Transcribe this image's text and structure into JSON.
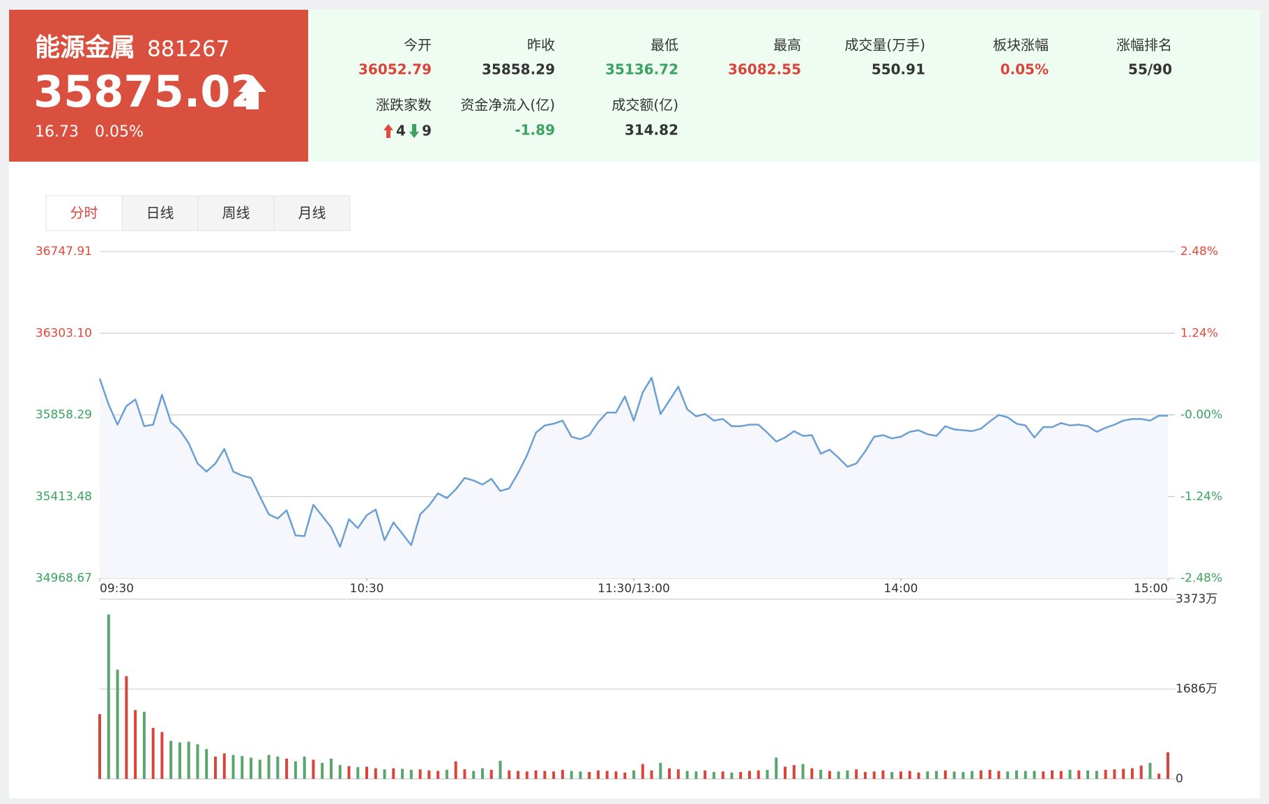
{
  "header": {
    "name": "能源金属",
    "code": "881267",
    "price": 35875.02,
    "change": 16.73,
    "change_pct": "0.05%"
  },
  "stats": [
    {
      "label": "今开",
      "value": 36052.79,
      "color": "#d9453a"
    },
    {
      "label": "昨收",
      "value": 35858.29,
      "color": "#333333"
    },
    {
      "label": "最低",
      "value": 35136.72,
      "color": "#3aa35f"
    },
    {
      "label": "最高",
      "value": 36082.55,
      "color": "#d9453a"
    },
    {
      "label": "成交量(万手)",
      "value": 550.91,
      "color": "#333333"
    },
    {
      "label": "板块涨幅",
      "value": "0.05%",
      "color": "#d9453a"
    },
    {
      "label": "涨幅排名",
      "value": "55/90",
      "color": "#333333"
    },
    {
      "label": "资金净流入(亿)",
      "value": -1.89,
      "color": "#3aa35f"
    },
    {
      "label": "成交额(亿)",
      "value": 314.82,
      "color": "#333333"
    }
  ],
  "breadth": {
    "label": "涨跌家数",
    "up": 4,
    "down": 9
  },
  "tabs": [
    "分时",
    "日线",
    "周线",
    "月线"
  ],
  "active_tab": 0,
  "chart_data": [
    {
      "type": "line",
      "color": "#6b9fd4",
      "area_color": "#f5f7fd",
      "grid": true,
      "up_color": "#e0493b",
      "down_color": "#3aa35f",
      "x": [
        0,
        2,
        4,
        6,
        8,
        10,
        12,
        14,
        16,
        18,
        20,
        22,
        24,
        26,
        28,
        30,
        32,
        34,
        36,
        38,
        40,
        42,
        44,
        46,
        48,
        50,
        52,
        54,
        56,
        58,
        60,
        62,
        64,
        66,
        68,
        70,
        72,
        74,
        76,
        78,
        80,
        82,
        84,
        86,
        88,
        90,
        92,
        94,
        96,
        98,
        100,
        102,
        104,
        106,
        108,
        110,
        112,
        114,
        116,
        118,
        120,
        122,
        124,
        126,
        128,
        130,
        132,
        134,
        136,
        138,
        140,
        142,
        144,
        146,
        148,
        150,
        152,
        154,
        156,
        158,
        160,
        162,
        164,
        166,
        168,
        170,
        172,
        174,
        176,
        178,
        180,
        182,
        184,
        186,
        188,
        190,
        192,
        194,
        196,
        198,
        200,
        202,
        204,
        206,
        208,
        210,
        212,
        214,
        216,
        218,
        220,
        222,
        224,
        226,
        228,
        230,
        232,
        234,
        236,
        238,
        240
      ],
      "values": [
        36056,
        35915,
        35805,
        35907,
        35942,
        35797,
        35805,
        35968,
        35819,
        35775,
        35704,
        35594,
        35550,
        35594,
        35673,
        35550,
        35528,
        35515,
        35414,
        35316,
        35294,
        35339,
        35202,
        35198,
        35369,
        35308,
        35246,
        35140,
        35290,
        35242,
        35312,
        35343,
        35176,
        35273,
        35211,
        35149,
        35316,
        35365,
        35431,
        35405,
        35453,
        35515,
        35501,
        35479,
        35510,
        35444,
        35458,
        35541,
        35638,
        35761,
        35801,
        35810,
        35827,
        35739,
        35726,
        35748,
        35819,
        35871,
        35871,
        35959,
        35827,
        35981,
        36061,
        35863,
        35937,
        36012,
        35889,
        35850,
        35863,
        35827,
        35836,
        35797,
        35797,
        35805,
        35805,
        35761,
        35713,
        35735,
        35770,
        35744,
        35748,
        35647,
        35669,
        35625,
        35576,
        35594,
        35660,
        35739,
        35748,
        35730,
        35739,
        35766,
        35775,
        35753,
        35744,
        35797,
        35779,
        35775,
        35770,
        35783,
        35823,
        35858,
        35845,
        35810,
        35801,
        35735,
        35792,
        35792,
        35814,
        35801,
        35805,
        35797,
        35766,
        35788,
        35805,
        35827,
        35836,
        35836,
        35827,
        35854,
        35854
      ],
      "xlim": [
        0,
        240
      ],
      "xticks": [
        {
          "value": 0,
          "label": "09:30"
        },
        {
          "value": 60,
          "label": "10:30"
        },
        {
          "value": 120,
          "label": "11:30/13:00"
        },
        {
          "value": 180,
          "label": "14:00"
        },
        {
          "value": 240,
          "label": "15:00"
        }
      ],
      "ylim": [
        34968.67,
        36747.91
      ],
      "yticks": [
        34968.67,
        35413.48,
        35858.29,
        {
          "value": 36303.1,
          "label": "36303.10"
        },
        36747.91
      ],
      "y2lim": [
        -2.48,
        2.48
      ],
      "y2ticks": [
        {
          "value": -2.48,
          "label": "-2.48%"
        },
        {
          "value": -1.24,
          "label": "-1.24%"
        },
        {
          "value": 0,
          "label": "-0.00%"
        },
        {
          "value": 1.24,
          "label": "1.24%"
        },
        {
          "value": 2.48,
          "label": "2.48%"
        }
      ]
    },
    {
      "type": "bar",
      "up_color": "#d9453a",
      "down_color": "#5aa56e",
      "x": [
        0,
        2,
        4,
        6,
        8,
        10,
        12,
        14,
        16,
        18,
        20,
        22,
        24,
        26,
        28,
        30,
        32,
        34,
        36,
        38,
        40,
        42,
        44,
        46,
        48,
        50,
        52,
        54,
        56,
        58,
        60,
        62,
        64,
        66,
        68,
        70,
        72,
        74,
        76,
        78,
        80,
        82,
        84,
        86,
        88,
        90,
        92,
        94,
        96,
        98,
        100,
        102,
        104,
        106,
        108,
        110,
        112,
        114,
        116,
        118,
        120,
        122,
        124,
        126,
        128,
        130,
        132,
        134,
        136,
        138,
        140,
        142,
        144,
        146,
        148,
        150,
        152,
        154,
        156,
        158,
        160,
        162,
        164,
        166,
        168,
        170,
        172,
        174,
        176,
        178,
        180,
        182,
        184,
        186,
        188,
        190,
        192,
        194,
        196,
        198,
        200,
        202,
        204,
        206,
        208,
        210,
        212,
        214,
        216,
        218,
        220,
        222,
        224,
        226,
        228,
        230,
        232,
        234,
        236,
        238,
        240
      ],
      "values": [
        1215,
        3084,
        2050,
        1929,
        1291,
        1260,
        957,
        881,
        714,
        684,
        700,
        650,
        560,
        420,
        480,
        450,
        430,
        400,
        360,
        450,
        420,
        380,
        330,
        420,
        360,
        300,
        380,
        260,
        240,
        220,
        230,
        200,
        180,
        200,
        190,
        170,
        180,
        160,
        150,
        170,
        330,
        180,
        150,
        200,
        170,
        340,
        160,
        150,
        140,
        160,
        150,
        140,
        170,
        150,
        140,
        130,
        160,
        150,
        140,
        120,
        160,
        280,
        160,
        300,
        200,
        180,
        150,
        140,
        160,
        130,
        140,
        120,
        130,
        150,
        160,
        170,
        400,
        230,
        260,
        280,
        200,
        170,
        150,
        140,
        160,
        180,
        130,
        140,
        160,
        130,
        140,
        150,
        120,
        140,
        150,
        160,
        140,
        130,
        150,
        160,
        170,
        150,
        140,
        160,
        150,
        150,
        140,
        160,
        150,
        170,
        160,
        160,
        150,
        170,
        180,
        190,
        200,
        250,
        300,
        100,
        500
      ],
      "xlim": [
        0,
        240
      ],
      "ylim": [
        0,
        3373
      ],
      "yticks": [
        0,
        {
          "value": 1686,
          "label": "1686万"
        },
        {
          "value": 3373,
          "label": "3373万"
        }
      ]
    }
  ]
}
